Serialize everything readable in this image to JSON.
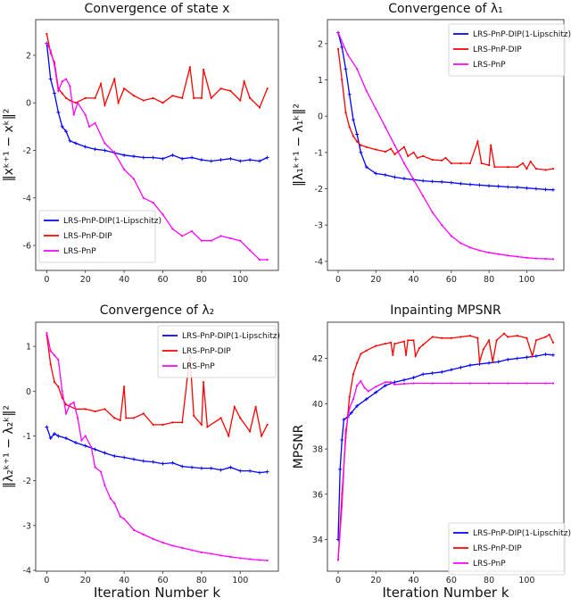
{
  "chart_data": [
    {
      "type": "line",
      "title": "Convergence of state x",
      "xlabel": "",
      "ylabel": "‖xᵏ⁺¹ − xᵏ‖²",
      "xlim": [
        -5.7,
        119.7
      ],
      "ylim": [
        -7.05,
        3.5
      ],
      "xticks": [
        0,
        20,
        40,
        60,
        80,
        100
      ],
      "yticks": [
        2,
        0,
        -2,
        -4,
        -6
      ],
      "legend": "bottom-left",
      "series": [
        {
          "name": "LRS-PnP-DIP(1-Lipschitz)",
          "color": "#0000ff",
          "marker": "+",
          "x": [
            0,
            2,
            4,
            6,
            8,
            10,
            12,
            15,
            20,
            25,
            30,
            35,
            40,
            45,
            50,
            55,
            60,
            65,
            70,
            75,
            80,
            85,
            90,
            95,
            100,
            105,
            110,
            114
          ],
          "y": [
            2.5,
            1.0,
            0.4,
            -0.4,
            -1.0,
            -1.2,
            -1.6,
            -1.7,
            -1.85,
            -1.95,
            -2.0,
            -2.1,
            -2.2,
            -2.25,
            -2.3,
            -2.3,
            -2.35,
            -2.2,
            -2.35,
            -2.3,
            -2.4,
            -2.45,
            -2.4,
            -2.35,
            -2.45,
            -2.4,
            -2.45,
            -2.3
          ]
        },
        {
          "name": "LRS-PnP-DIP",
          "color": "#ff0000",
          "marker": ".",
          "x": [
            0,
            2,
            4,
            6,
            8,
            10,
            12,
            15,
            20,
            25,
            28,
            30,
            35,
            37,
            40,
            45,
            50,
            55,
            60,
            65,
            70,
            74,
            76,
            80,
            81,
            85,
            90,
            95,
            100,
            102,
            105,
            110,
            114
          ],
          "y": [
            2.9,
            2.1,
            1.7,
            0.6,
            0.4,
            0.2,
            0.1,
            0.0,
            0.2,
            0.2,
            0.8,
            -0.1,
            1.0,
            0.0,
            0.6,
            0.3,
            0.1,
            0.2,
            0.0,
            0.3,
            0.2,
            1.5,
            0.2,
            0.2,
            1.4,
            0.2,
            0.6,
            0.5,
            0.1,
            0.9,
            0.2,
            -0.2,
            0.6
          ]
        },
        {
          "name": "LRS-PnP",
          "color": "#ff00ff",
          "marker": ".",
          "x": [
            0,
            2,
            4,
            6,
            8,
            10,
            12,
            14,
            16,
            20,
            22,
            25,
            30,
            35,
            40,
            45,
            50,
            55,
            60,
            65,
            70,
            75,
            80,
            85,
            90,
            95,
            100,
            105,
            110,
            114
          ],
          "y": [
            2.5,
            2.2,
            1.6,
            0.5,
            0.9,
            1.0,
            0.7,
            -0.5,
            0.0,
            -0.5,
            -1.0,
            -0.85,
            -1.7,
            -2.1,
            -2.8,
            -3.2,
            -4.0,
            -4.2,
            -4.7,
            -5.3,
            -5.6,
            -5.4,
            -5.8,
            -5.8,
            -5.6,
            -5.7,
            -5.8,
            -6.2,
            -6.6,
            -6.6
          ]
        }
      ]
    },
    {
      "type": "line",
      "title": "Convergence of λ₁",
      "xlabel": "",
      "ylabel": "‖λ₁ᵏ⁺¹ − λ₁ᵏ‖²",
      "xlim": [
        -5.7,
        119.7
      ],
      "ylim": [
        -4.25,
        2.66
      ],
      "xticks": [
        0,
        20,
        40,
        60,
        80,
        100
      ],
      "yticks": [
        2,
        1,
        0,
        -1,
        -2,
        -3,
        -4
      ],
      "legend": "top-right",
      "series": [
        {
          "name": "LRS-PnP-DIP(1-Lipschitz)",
          "color": "#0000ff",
          "marker": "+",
          "x": [
            0,
            2,
            4,
            6,
            8,
            10,
            12,
            15,
            20,
            25,
            30,
            35,
            40,
            45,
            50,
            55,
            60,
            65,
            70,
            75,
            80,
            85,
            90,
            95,
            100,
            105,
            110,
            114
          ],
          "y": [
            2.3,
            1.9,
            1.3,
            0.6,
            -0.1,
            -0.5,
            -1.0,
            -1.4,
            -1.58,
            -1.62,
            -1.68,
            -1.72,
            -1.75,
            -1.78,
            -1.8,
            -1.81,
            -1.83,
            -1.86,
            -1.88,
            -1.9,
            -1.92,
            -1.93,
            -1.95,
            -1.96,
            -1.98,
            -2.0,
            -2.02,
            -2.03
          ]
        },
        {
          "name": "LRS-PnP-DIP",
          "color": "#ff0000",
          "marker": ".",
          "x": [
            0,
            2,
            4,
            6,
            8,
            10,
            12,
            15,
            20,
            25,
            28,
            30,
            35,
            37,
            40,
            42,
            45,
            50,
            55,
            57,
            60,
            65,
            70,
            74,
            76,
            80,
            81,
            83,
            90,
            95,
            98,
            100,
            102,
            105,
            110,
            114
          ],
          "y": [
            1.85,
            1.0,
            0.1,
            -0.3,
            -0.55,
            -0.7,
            -0.8,
            -0.85,
            -0.92,
            -0.98,
            -0.9,
            -1.05,
            -0.85,
            -1.1,
            -1.0,
            -1.15,
            -1.1,
            -1.2,
            -1.22,
            -1.15,
            -1.3,
            -1.3,
            -1.3,
            -0.7,
            -1.3,
            -1.35,
            -0.8,
            -1.4,
            -1.4,
            -1.4,
            -1.3,
            -1.45,
            -1.25,
            -1.45,
            -1.48,
            -1.45
          ]
        },
        {
          "name": "LRS-PnP",
          "color": "#ff00ff",
          "marker": ".",
          "x": [
            0,
            5,
            10,
            15,
            20,
            25,
            30,
            35,
            40,
            45,
            50,
            55,
            60,
            65,
            70,
            75,
            80,
            85,
            90,
            95,
            100,
            105,
            110,
            114
          ],
          "y": [
            2.3,
            1.7,
            1.3,
            0.7,
            0.2,
            -0.3,
            -0.8,
            -1.3,
            -1.75,
            -2.2,
            -2.65,
            -3.0,
            -3.3,
            -3.5,
            -3.62,
            -3.7,
            -3.76,
            -3.8,
            -3.84,
            -3.87,
            -3.9,
            -3.92,
            -3.93,
            -3.94
          ]
        }
      ]
    },
    {
      "type": "line",
      "title": "Convergence of λ₂",
      "xlabel": "Iteration Number k",
      "ylabel": "‖λ₂ᵏ⁺¹ − λ₂ᵏ‖²",
      "xlim": [
        -5.7,
        119.7
      ],
      "ylim": [
        -4.02,
        1.54
      ],
      "xticks": [
        0,
        20,
        40,
        60,
        80,
        100
      ],
      "yticks": [
        1,
        0,
        -1,
        -2,
        -3,
        -4
      ],
      "legend": "top-right",
      "series": [
        {
          "name": "LRS-PnP-DIP(1-Lipschitz)",
          "color": "#0000ff",
          "marker": "+",
          "x": [
            0,
            2,
            4,
            6,
            10,
            15,
            20,
            25,
            30,
            35,
            40,
            45,
            50,
            55,
            60,
            65,
            70,
            75,
            80,
            85,
            90,
            95,
            100,
            105,
            110,
            114
          ],
          "y": [
            -0.8,
            -1.05,
            -0.95,
            -1.0,
            -1.05,
            -1.15,
            -1.22,
            -1.3,
            -1.38,
            -1.45,
            -1.48,
            -1.52,
            -1.56,
            -1.58,
            -1.62,
            -1.6,
            -1.68,
            -1.7,
            -1.72,
            -1.72,
            -1.76,
            -1.7,
            -1.78,
            -1.78,
            -1.82,
            -1.8
          ]
        },
        {
          "name": "LRS-PnP-DIP",
          "color": "#ff0000",
          "marker": ".",
          "x": [
            0,
            2,
            4,
            6,
            8,
            10,
            15,
            20,
            25,
            30,
            35,
            38,
            40,
            41,
            45,
            50,
            55,
            60,
            65,
            70,
            74,
            76,
            80,
            81,
            83,
            90,
            94,
            97,
            100,
            105,
            108,
            111,
            114
          ],
          "y": [
            1.25,
            0.6,
            0.2,
            0.1,
            -0.15,
            -0.3,
            -0.4,
            -0.4,
            -0.45,
            -0.4,
            -0.6,
            -0.65,
            0.1,
            -0.6,
            -0.6,
            -0.5,
            -0.75,
            -0.75,
            -0.7,
            -0.7,
            0.8,
            -0.55,
            -0.75,
            0.2,
            -0.8,
            -0.6,
            -1.0,
            -0.35,
            -0.6,
            -0.9,
            -0.35,
            -1.0,
            -0.75
          ]
        },
        {
          "name": "LRS-PnP",
          "color": "#ff00ff",
          "marker": ".",
          "x": [
            0,
            2,
            4,
            6,
            8,
            10,
            12,
            14,
            16,
            18,
            20,
            23,
            25,
            28,
            30,
            33,
            35,
            38,
            40,
            45,
            50,
            55,
            60,
            65,
            70,
            75,
            80,
            85,
            90,
            95,
            100,
            105,
            110,
            114
          ],
          "y": [
            1.3,
            0.9,
            0.8,
            0.7,
            0.0,
            -0.5,
            -0.3,
            -0.25,
            -0.6,
            -1.1,
            -1.0,
            -1.25,
            -1.7,
            -1.8,
            -2.1,
            -2.4,
            -2.5,
            -2.8,
            -2.85,
            -3.1,
            -3.2,
            -3.3,
            -3.38,
            -3.45,
            -3.5,
            -3.55,
            -3.6,
            -3.63,
            -3.67,
            -3.7,
            -3.73,
            -3.75,
            -3.77,
            -3.78
          ]
        }
      ]
    },
    {
      "type": "line",
      "title": "Inpainting MPSNR",
      "xlabel": "Iteration Number k",
      "ylabel": "MPSNR",
      "xlim": [
        -5.7,
        119.7
      ],
      "ylim": [
        32.6,
        43.6
      ],
      "xticks": [
        0,
        20,
        40,
        60,
        80,
        100
      ],
      "yticks": [
        42,
        40,
        38,
        36,
        34
      ],
      "legend": "bottom-right",
      "series": [
        {
          "name": "LRS-PnP-DIP(1-Lipschitz)",
          "color": "#0000ff",
          "marker": "+",
          "x": [
            0,
            1,
            2,
            3,
            5,
            7,
            10,
            15,
            20,
            25,
            30,
            35,
            40,
            45,
            50,
            55,
            60,
            65,
            70,
            75,
            80,
            85,
            90,
            95,
            100,
            105,
            110,
            114
          ],
          "y": [
            34.0,
            37.1,
            38.4,
            39.3,
            39.4,
            39.6,
            39.9,
            40.2,
            40.5,
            40.8,
            40.95,
            41.05,
            41.15,
            41.3,
            41.35,
            41.4,
            41.5,
            41.6,
            41.7,
            41.75,
            41.8,
            41.85,
            41.95,
            42.0,
            42.05,
            42.1,
            42.18,
            42.15
          ]
        },
        {
          "name": "LRS-PnP-DIP",
          "color": "#ff0000",
          "marker": ".",
          "x": [
            0,
            2,
            4,
            6,
            8,
            10,
            12,
            15,
            20,
            25,
            28,
            29,
            30,
            35,
            36,
            37,
            40,
            41,
            43,
            45,
            50,
            55,
            60,
            65,
            70,
            74,
            75,
            77,
            80,
            82,
            84,
            88,
            90,
            95,
            100,
            103,
            105,
            110,
            112,
            114
          ],
          "y": [
            33.1,
            36.0,
            38.5,
            40.3,
            41.3,
            41.8,
            42.2,
            42.35,
            42.55,
            42.65,
            42.7,
            42.15,
            42.65,
            42.75,
            42.15,
            42.8,
            42.8,
            42.1,
            42.45,
            42.6,
            42.95,
            42.9,
            42.9,
            42.95,
            43.0,
            42.9,
            41.85,
            42.4,
            42.8,
            41.85,
            42.8,
            43.1,
            42.95,
            43.0,
            42.9,
            42.1,
            42.8,
            42.95,
            43.05,
            42.7
          ]
        },
        {
          "name": "LRS-PnP",
          "color": "#ff00ff",
          "marker": ".",
          "x": [
            0,
            2,
            4,
            6,
            8,
            10,
            12,
            14,
            16,
            20,
            25,
            28,
            30,
            35,
            40,
            50,
            60,
            70,
            80,
            90,
            100,
            110,
            114
          ],
          "y": [
            33.1,
            35.5,
            38.8,
            39.8,
            40.2,
            40.8,
            41.0,
            40.7,
            40.55,
            40.75,
            40.95,
            40.95,
            40.85,
            40.88,
            40.9,
            40.9,
            40.9,
            40.9,
            40.9,
            40.9,
            40.9,
            40.9,
            40.9
          ]
        }
      ]
    }
  ]
}
